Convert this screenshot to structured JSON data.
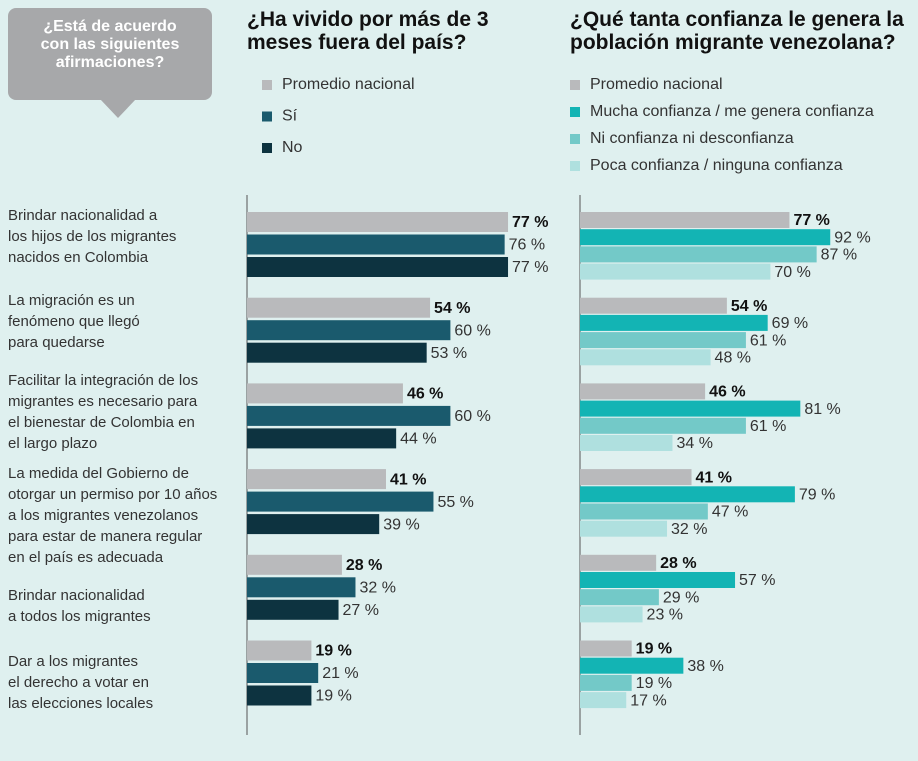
{
  "header": "¿Está de acuerdo\ncon las siguientes\nafirmaciones?",
  "chart_data": [
    {
      "type": "barh",
      "title": "¿Ha vivido por más de 3\nmeses fuera del país?",
      "categories": [
        "Brindar nacionalidad a\nlos hijos de los migrantes\nnacidos en Colombia",
        "La migración es un\nfenómeno que llegó\npara quedarse",
        "Facilitar la integración de los\nmigrantes es necesario para\nel bienestar de Colombia en\nel largo plazo",
        "La medida del Gobierno de\notorgar un permiso por 10 años\na los migrantes venezolanos\npara estar de manera regular\nen el país es adecuada",
        "Brindar nacionalidad\na todos los migrantes",
        "Dar a los migrantes\nel derecho a votar en\nlas elecciones locales"
      ],
      "xlim": [
        0,
        100
      ],
      "series": [
        {
          "name": "Promedio nacional",
          "color": "#b9babc",
          "values": [
            77,
            54,
            46,
            41,
            28,
            19
          ],
          "value_labels": [
            "77 %",
            "54 %",
            "46 %",
            "41 %",
            "28 %",
            "19 %"
          ]
        },
        {
          "name": "Sí",
          "color": "#1a5a6d",
          "values": [
            76,
            60,
            60,
            55,
            32,
            21
          ],
          "value_labels": [
            "76 %",
            "60 %",
            "60 %",
            "55 %",
            "32 %",
            "21 %"
          ]
        },
        {
          "name": "No",
          "color": "#0d3340",
          "values": [
            77,
            53,
            44,
            39,
            27,
            19
          ],
          "value_labels": [
            "77 %",
            "53 %",
            "44 %",
            "39 %",
            "27 %",
            "19 %"
          ]
        }
      ]
    },
    {
      "type": "barh",
      "title": "¿Qué tanta confianza le genera la\npoblación migrante venezolana?",
      "xlim": [
        0,
        100
      ],
      "series": [
        {
          "name": "Promedio nacional",
          "color": "#b9babc",
          "values": [
            77,
            54,
            46,
            41,
            28,
            19
          ],
          "value_labels": [
            "77 %",
            "54 %",
            "46 %",
            "41 %",
            "28 %",
            "19 %"
          ]
        },
        {
          "name": "Mucha confianza / me genera confianza",
          "color": "#13b4b4",
          "values": [
            92,
            69,
            81,
            79,
            57,
            38
          ],
          "value_labels": [
            "92 %",
            "69 %",
            "81 %",
            "79 %",
            "57 %",
            "38 %"
          ]
        },
        {
          "name": "Ni confianza ni desconfianza",
          "color": "#73c9c8",
          "values": [
            87,
            61,
            61,
            47,
            29,
            19
          ],
          "value_labels": [
            "87 %",
            "61 %",
            "61 %",
            "47 %",
            "29 %",
            "19 %"
          ]
        },
        {
          "name": "Poca confianza / ninguna confianza",
          "color": "#afe0df",
          "values": [
            70,
            48,
            34,
            32,
            23,
            17
          ],
          "value_labels": [
            "70 %",
            "48 %",
            "34 %",
            "32 %",
            "23 %",
            "17 %"
          ]
        }
      ]
    }
  ]
}
